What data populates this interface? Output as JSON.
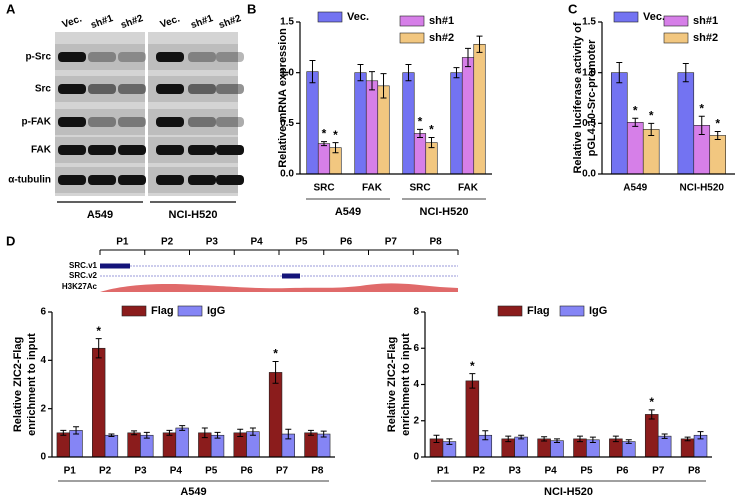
{
  "panel_labels": [
    "A",
    "B",
    "C",
    "D"
  ],
  "blot": {
    "lanes": [
      "Vec.",
      "sh#1",
      "sh#2",
      "Vec.",
      "sh#1",
      "sh#2"
    ],
    "rows": [
      "p-Src",
      "Src",
      "p-FAK",
      "FAK",
      "α-tubulin"
    ],
    "cell_lines": [
      "A549",
      "NCI-H520"
    ]
  },
  "track": {
    "regions": [
      "P1",
      "P2",
      "P3",
      "P4",
      "P5",
      "P6",
      "P7",
      "P8"
    ],
    "tracks": [
      "SRC.v1",
      "SRC.v2",
      "H3K27Ac"
    ]
  },
  "chart_data": [
    {
      "type": "bar",
      "y_label": [
        "Relative mRNA expression"
      ],
      "categories": [
        "SRC",
        "FAK",
        "SRC",
        "FAK"
      ],
      "group_labels": [
        "A549",
        "NCI-H520"
      ],
      "ylim": [
        0,
        1.5
      ],
      "yticks": [
        {
          "value": 0,
          "label": "0.0"
        },
        0.5,
        {
          "value": 1,
          "label": "1.0"
        },
        1.5
      ],
      "series": [
        {
          "name": "Vec.",
          "color": "#7373f2",
          "values": [
            1.01,
            1.0,
            1.0,
            1.0
          ],
          "errors": [
            0.11,
            0.08,
            0.08,
            0.05
          ]
        },
        {
          "name": "sh#1",
          "color": "#d67fe8",
          "values": [
            0.3,
            0.92,
            0.4,
            1.15
          ],
          "errors": [
            0.02,
            0.09,
            0.04,
            0.09
          ],
          "labels": [
            "*",
            null,
            "*",
            null
          ]
        },
        {
          "name": "sh#2",
          "color": "#f2c780",
          "values": [
            0.26,
            0.87,
            0.31,
            1.28
          ],
          "errors": [
            0.05,
            0.12,
            0.05,
            0.08
          ],
          "labels": [
            "*",
            null,
            "*",
            null
          ]
        }
      ]
    },
    {
      "type": "bar",
      "y_label": [
        "Relative luciferase activity of",
        "pGL4.10-Src-promoter"
      ],
      "categories": [
        "A549",
        "NCI-H520"
      ],
      "ylim": [
        0,
        1.5
      ],
      "yticks": [
        {
          "value": 0,
          "label": "0.0"
        },
        0.5,
        {
          "value": 1,
          "label": "1.0"
        },
        1.5
      ],
      "series": [
        {
          "name": "Vec.",
          "color": "#7373f2",
          "values": [
            1.0,
            1.0
          ],
          "errors": [
            0.1,
            0.09
          ]
        },
        {
          "name": "sh#1",
          "color": "#d67fe8",
          "values": [
            0.51,
            0.48
          ],
          "errors": [
            0.04,
            0.09
          ],
          "labels": [
            "*",
            "*"
          ]
        },
        {
          "name": "sh#2",
          "color": "#f2c780",
          "values": [
            0.44,
            0.38
          ],
          "errors": [
            0.06,
            0.04
          ],
          "labels": [
            "*",
            "*"
          ]
        }
      ]
    },
    {
      "type": "bar",
      "y_label": [
        "Relative ZIC2-Flag",
        "enrichment to input"
      ],
      "categories": [
        "P1",
        "P2",
        "P3",
        "P4",
        "P5",
        "P6",
        "P7",
        "P8"
      ],
      "group_labels": [
        "A549"
      ],
      "ylim": [
        0,
        6
      ],
      "yticks": [
        0,
        2,
        4,
        6
      ],
      "series": [
        {
          "name": "Flag",
          "color": "#8b1c1c",
          "values": [
            1.0,
            4.5,
            1.0,
            1.0,
            1.0,
            1.0,
            3.5,
            1.0
          ],
          "errors": [
            0.1,
            0.4,
            0.08,
            0.1,
            0.2,
            0.15,
            0.45,
            0.1
          ],
          "labels": [
            null,
            "*",
            null,
            null,
            null,
            null,
            "*",
            null
          ]
        },
        {
          "name": "IgG",
          "color": "#8585f5",
          "values": [
            1.1,
            0.9,
            0.9,
            1.2,
            0.9,
            1.05,
            0.95,
            0.95
          ],
          "errors": [
            0.15,
            0.05,
            0.12,
            0.1,
            0.12,
            0.15,
            0.2,
            0.12
          ]
        }
      ]
    },
    {
      "type": "bar",
      "y_label": [
        "Relative ZIC2-Flag",
        "enrichment to input"
      ],
      "categories": [
        "P1",
        "P2",
        "P3",
        "P4",
        "P5",
        "P6",
        "P7",
        "P8"
      ],
      "group_labels": [
        "NCI-H520"
      ],
      "ylim": [
        0,
        8
      ],
      "yticks": [
        0,
        2,
        4,
        6,
        8
      ],
      "series": [
        {
          "name": "Flag",
          "color": "#8b1c1c",
          "values": [
            1.0,
            4.2,
            1.0,
            1.0,
            1.0,
            1.0,
            2.35,
            1.0
          ],
          "errors": [
            0.2,
            0.4,
            0.15,
            0.12,
            0.15,
            0.15,
            0.25,
            0.1
          ],
          "labels": [
            null,
            "*",
            null,
            null,
            null,
            null,
            "*",
            null
          ]
        },
        {
          "name": "IgG",
          "color": "#8585f5",
          "values": [
            0.85,
            1.2,
            1.1,
            0.9,
            0.95,
            0.85,
            1.15,
            1.2
          ],
          "errors": [
            0.15,
            0.25,
            0.1,
            0.1,
            0.15,
            0.1,
            0.12,
            0.2
          ]
        }
      ]
    }
  ]
}
